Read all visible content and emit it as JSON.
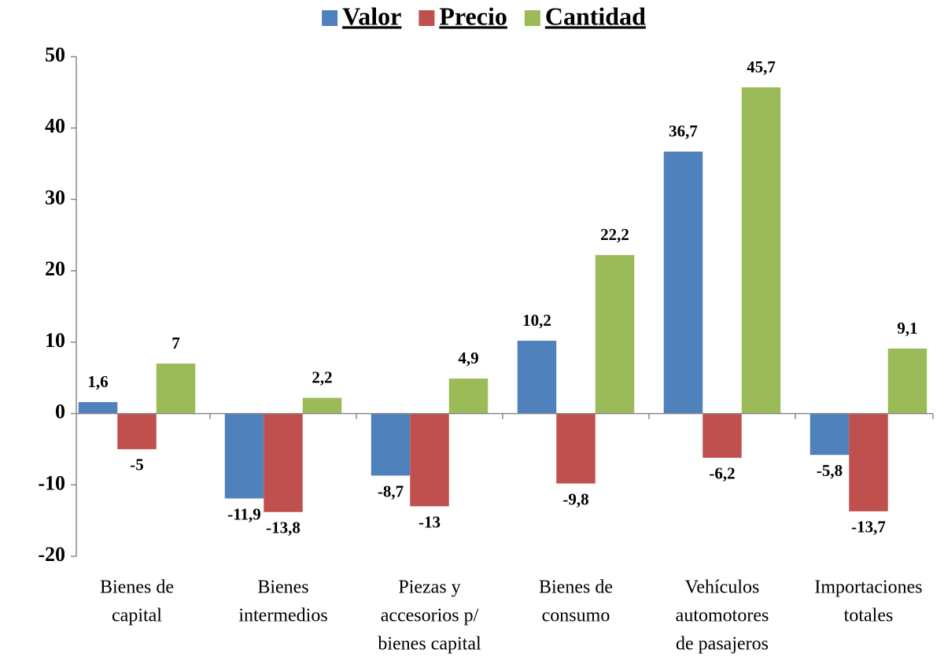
{
  "chart_data": {
    "type": "bar",
    "categories": [
      [
        "Bienes de",
        "capital"
      ],
      [
        "Bienes",
        "intermedios"
      ],
      [
        "Piezas y",
        "accesorios p/",
        "bienes capital"
      ],
      [
        "Bienes de",
        "consumo"
      ],
      [
        "Vehículos",
        "automotores",
        "de pasajeros"
      ],
      [
        "Importaciones",
        "totales"
      ]
    ],
    "series": [
      {
        "name": "Valor",
        "color": "#4f81bd",
        "values": [
          1.6,
          -11.9,
          -8.7,
          10.2,
          36.7,
          -5.8
        ],
        "value_labels": [
          "1,6",
          "-11,9",
          "-8,7",
          "10,2",
          "36,7",
          "-5,8"
        ]
      },
      {
        "name": "Precio",
        "color": "#c0504d",
        "values": [
          -5,
          -13.8,
          -13,
          -9.8,
          -6.2,
          -13.7
        ],
        "value_labels": [
          "-5",
          "-13,8",
          "-13",
          "-9,8",
          "-6,2",
          "-13,7"
        ]
      },
      {
        "name": "Cantidad",
        "color": "#9bbb59",
        "values": [
          7,
          2.2,
          4.9,
          22.2,
          45.7,
          9.1
        ],
        "value_labels": [
          "7",
          "2,2",
          "4,9",
          "22,2",
          "45,7",
          "9,1"
        ]
      }
    ],
    "ylim": [
      -20,
      50
    ],
    "yticks": [
      -20,
      -10,
      0,
      10,
      20,
      30,
      40,
      50
    ],
    "legend": "top"
  }
}
